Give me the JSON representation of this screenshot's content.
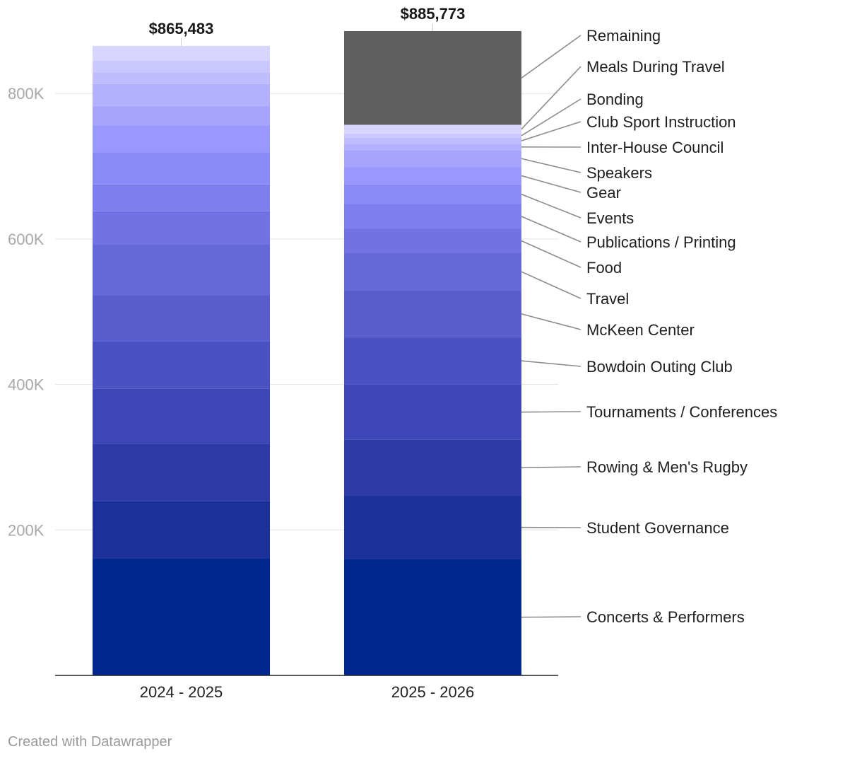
{
  "chart_data": {
    "type": "bar",
    "stacked": true,
    "title": "",
    "xlabel": "",
    "ylabel": "",
    "ylim": [
      0,
      885773
    ],
    "y_ticks": [
      200000,
      400000,
      600000,
      800000
    ],
    "y_tick_labels": [
      "200K",
      "400K",
      "600K",
      "800K"
    ],
    "grid": true,
    "categories": [
      "2024 - 2025",
      "2025 - 2026"
    ],
    "totals": [
      865483,
      885773
    ],
    "total_labels": [
      "$865,483",
      "$885,773"
    ],
    "series": [
      {
        "name": "Concerts & Performers",
        "color": "#00268f",
        "values": [
          161000,
          160000
        ]
      },
      {
        "name": "Student Governance",
        "color": "#1c3099",
        "values": [
          79000,
          87000
        ]
      },
      {
        "name": "Rowing & Men's Rugby",
        "color": "#2d3aa8",
        "values": [
          78000,
          77000
        ]
      },
      {
        "name": "Tournaments / Conferences",
        "color": "#3c46b6",
        "values": [
          76000,
          76000
        ]
      },
      {
        "name": "Bowdoin Outing Club",
        "color": "#4a51c2",
        "values": [
          65000,
          65000
        ]
      },
      {
        "name": "McKeen Center",
        "color": "#585ccd",
        "values": [
          64000,
          64000
        ]
      },
      {
        "name": "Travel",
        "color": "#6568d9",
        "values": [
          70000,
          52000
        ]
      },
      {
        "name": "Food",
        "color": "#7173e4",
        "values": [
          45000,
          33000
        ]
      },
      {
        "name": "Publications / Printing",
        "color": "#7d7fef",
        "values": [
          37000,
          34000
        ]
      },
      {
        "name": "Events",
        "color": "#8a8bf8",
        "values": [
          44000,
          27000
        ]
      },
      {
        "name": "Gear",
        "color": "#9998fc",
        "values": [
          37000,
          24000
        ]
      },
      {
        "name": "Speakers",
        "color": "#a6a4fd",
        "values": [
          27000,
          23000
        ]
      },
      {
        "name": "Inter-House Council",
        "color": "#b3b0fe",
        "values": [
          30000,
          9000
        ]
      },
      {
        "name": "Club Sport Instruction",
        "color": "#bfbdfe",
        "values": [
          16000,
          8000
        ]
      },
      {
        "name": "Bonding",
        "color": "#cbc8ff",
        "values": [
          16000,
          6000
        ]
      },
      {
        "name": "Meals During Travel",
        "color": "#d8d5ff",
        "values": [
          20483,
          12000
        ]
      },
      {
        "name": "Remaining",
        "color": "#5f5f5f",
        "values": [
          0,
          128773
        ]
      }
    ]
  },
  "footer": {
    "credit": "Created with Datawrapper"
  }
}
